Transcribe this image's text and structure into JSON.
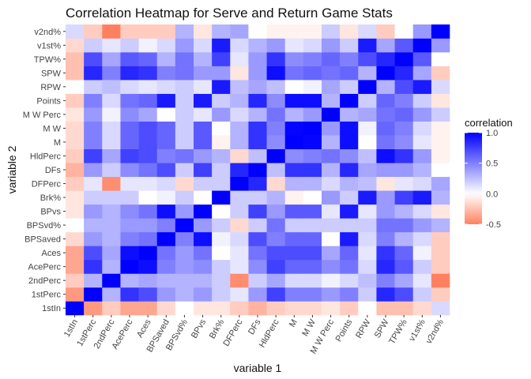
{
  "chart_data": {
    "type": "heatmap",
    "title": "Correlation Heatmap for Serve and Return Game Stats",
    "xlabel": "variable 1",
    "ylabel": "variable 2",
    "categories": [
      "1stIn",
      "1stPerc",
      "2ndPerc",
      "AcePerc",
      "Aces",
      "BPSaved",
      "BPSvd%",
      "BPvs",
      "Brk%",
      "DFPerc",
      "DFs",
      "HldPerc",
      "M",
      "M W",
      "M W Perc",
      "Points",
      "RPW",
      "SPW",
      "TPW%",
      "v1st%",
      "v2nd%"
    ],
    "values": [
      [
        1.0,
        -0.4,
        -0.2,
        -0.35,
        -0.35,
        -0.15,
        0.0,
        -0.1,
        -0.1,
        -0.2,
        -0.3,
        -0.2,
        -0.15,
        -0.15,
        -0.1,
        -0.2,
        0.0,
        -0.25,
        -0.25,
        -0.15,
        0.15
      ],
      [
        -0.4,
        1.0,
        0.3,
        0.8,
        0.7,
        0.4,
        0.3,
        0.4,
        0.2,
        0.1,
        0.4,
        0.75,
        0.5,
        0.5,
        0.4,
        0.5,
        0.2,
        0.85,
        0.7,
        0.2,
        -0.2
      ],
      [
        -0.2,
        0.3,
        1.0,
        0.3,
        0.35,
        0.3,
        0.3,
        0.3,
        0.2,
        -0.45,
        0.2,
        0.35,
        0.15,
        0.15,
        0.05,
        0.15,
        0.25,
        0.5,
        0.35,
        0.1,
        -0.5
      ],
      [
        -0.35,
        0.8,
        0.3,
        1.0,
        0.95,
        0.5,
        0.4,
        0.45,
        0.2,
        0.1,
        0.45,
        0.75,
        0.6,
        0.6,
        0.45,
        0.55,
        0.15,
        0.85,
        0.65,
        0.2,
        -0.2
      ],
      [
        -0.35,
        0.7,
        0.35,
        0.95,
        1.0,
        0.55,
        0.4,
        0.55,
        0.0,
        0.1,
        0.55,
        0.7,
        0.7,
        0.7,
        0.35,
        0.6,
        0.1,
        0.8,
        0.6,
        0.05,
        -0.2
      ],
      [
        -0.15,
        0.4,
        0.3,
        0.5,
        0.55,
        1.0,
        0.5,
        0.95,
        0.05,
        0.15,
        0.7,
        0.5,
        0.6,
        0.6,
        0.0,
        0.9,
        0.15,
        0.5,
        0.3,
        0.15,
        -0.2
      ],
      [
        0.0,
        0.3,
        0.3,
        0.4,
        0.4,
        0.5,
        1.0,
        0.4,
        0.2,
        -0.15,
        0.2,
        0.55,
        0.2,
        0.2,
        0.2,
        0.2,
        0.2,
        0.55,
        0.55,
        0.4,
        0.3
      ],
      [
        -0.1,
        0.4,
        0.3,
        0.45,
        0.55,
        0.95,
        0.4,
        1.0,
        0.0,
        0.2,
        0.75,
        0.4,
        0.65,
        0.65,
        0.1,
        0.9,
        0.1,
        0.4,
        0.3,
        0.15,
        -0.1
      ],
      [
        -0.1,
        0.2,
        0.2,
        0.2,
        0.0,
        0.05,
        0.2,
        0.0,
        1.0,
        0.2,
        0.2,
        0.3,
        -0.05,
        0.0,
        0.4,
        0.2,
        0.9,
        0.4,
        0.75,
        0.9,
        0.3
      ],
      [
        -0.2,
        0.1,
        -0.45,
        0.1,
        0.1,
        0.15,
        -0.15,
        0.2,
        0.2,
        1.0,
        0.85,
        -0.15,
        0.3,
        0.3,
        0.15,
        0.3,
        0.25,
        -0.1,
        0.1,
        0.15,
        0.35
      ],
      [
        -0.3,
        0.4,
        0.2,
        0.45,
        0.55,
        0.7,
        0.2,
        0.75,
        0.2,
        0.85,
        1.0,
        0.25,
        0.8,
        0.8,
        0.3,
        0.85,
        0.35,
        0.4,
        0.4,
        0.3,
        0.0
      ],
      [
        -0.2,
        0.75,
        0.35,
        0.75,
        0.7,
        0.5,
        0.55,
        0.4,
        0.3,
        -0.15,
        0.25,
        1.0,
        0.45,
        0.5,
        0.55,
        0.45,
        0.25,
        0.95,
        0.8,
        0.4,
        -0.05
      ],
      [
        -0.15,
        0.5,
        0.15,
        0.6,
        0.7,
        0.6,
        0.2,
        0.65,
        -0.05,
        0.3,
        0.8,
        0.45,
        1.0,
        0.98,
        0.3,
        0.95,
        0.0,
        0.55,
        0.45,
        0.1,
        -0.05
      ],
      [
        -0.15,
        0.5,
        0.15,
        0.6,
        0.7,
        0.6,
        0.2,
        0.65,
        0.0,
        0.3,
        0.8,
        0.5,
        0.98,
        1.0,
        0.4,
        0.95,
        0.05,
        0.6,
        0.5,
        0.15,
        -0.05
      ],
      [
        -0.1,
        0.4,
        0.05,
        0.45,
        0.35,
        0.0,
        0.2,
        0.1,
        0.4,
        0.15,
        0.3,
        0.55,
        0.3,
        0.4,
        1.0,
        0.3,
        0.35,
        0.55,
        0.6,
        0.4,
        0.2
      ],
      [
        -0.2,
        0.5,
        0.15,
        0.55,
        0.6,
        0.9,
        0.2,
        0.9,
        0.2,
        0.3,
        0.85,
        0.45,
        0.95,
        0.95,
        0.3,
        1.0,
        0.2,
        0.6,
        0.5,
        0.2,
        -0.1
      ],
      [
        0.0,
        0.2,
        0.25,
        0.15,
        0.1,
        0.15,
        0.2,
        0.1,
        0.9,
        0.25,
        0.35,
        0.25,
        0.0,
        0.05,
        0.35,
        0.2,
        1.0,
        0.3,
        0.7,
        0.9,
        0.15
      ],
      [
        -0.25,
        0.85,
        0.5,
        0.85,
        0.8,
        0.5,
        0.55,
        0.4,
        0.4,
        -0.1,
        0.4,
        0.95,
        0.55,
        0.6,
        0.55,
        0.6,
        0.3,
        1.0,
        0.85,
        0.35,
        -0.2
      ],
      [
        -0.25,
        0.7,
        0.35,
        0.65,
        0.6,
        0.3,
        0.55,
        0.3,
        0.75,
        0.1,
        0.4,
        0.8,
        0.45,
        0.5,
        0.6,
        0.5,
        0.7,
        0.85,
        1.0,
        0.65,
        0.0
      ],
      [
        -0.15,
        0.2,
        0.1,
        0.2,
        0.05,
        0.15,
        0.4,
        0.15,
        0.9,
        0.15,
        0.3,
        0.4,
        0.1,
        0.15,
        0.4,
        0.2,
        0.9,
        0.35,
        0.65,
        1.0,
        0.4
      ],
      [
        0.15,
        -0.2,
        -0.5,
        -0.2,
        -0.2,
        -0.2,
        0.3,
        -0.1,
        0.3,
        0.35,
        0.0,
        -0.05,
        -0.05,
        -0.05,
        0.2,
        -0.1,
        0.15,
        -0.2,
        0.0,
        0.4,
        1.0
      ]
    ],
    "zlim": [
      -0.5,
      1.0
    ],
    "colors": {
      "low": "#ff8060",
      "mid": "#ffffff",
      "high": "#0000ff",
      "panel_background": "#ebebeb"
    },
    "legend": {
      "title": "correlation",
      "placement": "right",
      "ticks": [
        1.0,
        0.5,
        0.0,
        -0.5
      ],
      "tick_labels": [
        "1.0",
        "0.5",
        "0.0",
        "-0.5"
      ]
    },
    "x_tick_rotation_deg": 60,
    "grid": true
  }
}
